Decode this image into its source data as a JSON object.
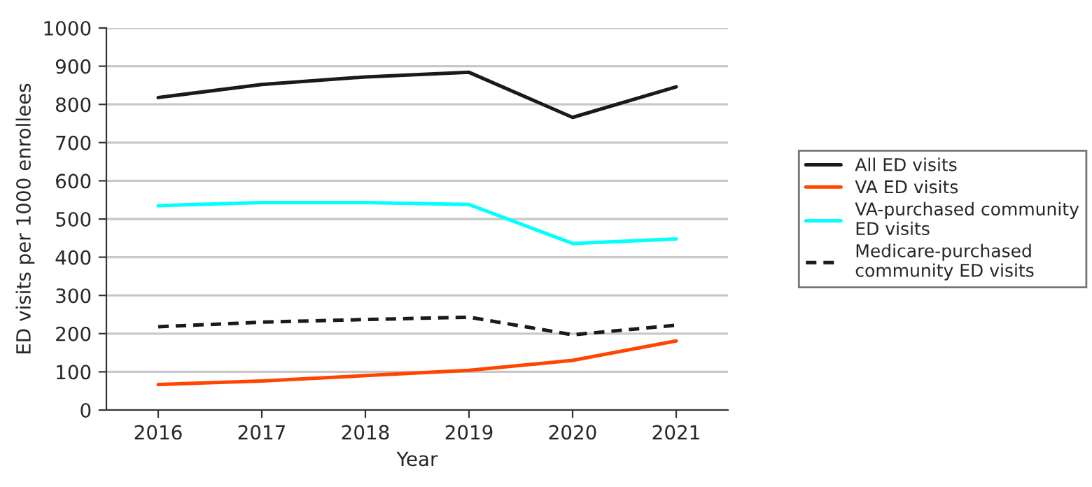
{
  "chart_data": {
    "type": "line",
    "xlabel": "Year",
    "ylabel": "ED visits per 1000 enrollees",
    "categories": [
      "2016",
      "2017",
      "2018",
      "2019",
      "2020",
      "2021"
    ],
    "series": [
      {
        "name": "All ED visits",
        "color": "#1a1a1a",
        "values": [
          818,
          852,
          872,
          884,
          766,
          846
        ]
      },
      {
        "name": "VA ED visits",
        "color": "#ff4500",
        "values": [
          67,
          76,
          90,
          104,
          130,
          181
        ]
      },
      {
        "name": "VA-purchased community\nED visits",
        "color": "#00ffff",
        "values": [
          535,
          543,
          543,
          538,
          436,
          448
        ]
      },
      {
        "name": "Medicare-purchased\ncommunity ED visits",
        "color": "#1a1a1a",
        "line_style": "dashed",
        "values": [
          218,
          230,
          237,
          243,
          197,
          222
        ]
      }
    ],
    "ylim": [
      0,
      1000
    ],
    "yticks": [
      0,
      100,
      200,
      300,
      400,
      500,
      600,
      700,
      800,
      900,
      1000
    ],
    "grid": "y",
    "legend": "right",
    "line_style": "solid",
    "marker": "none"
  }
}
